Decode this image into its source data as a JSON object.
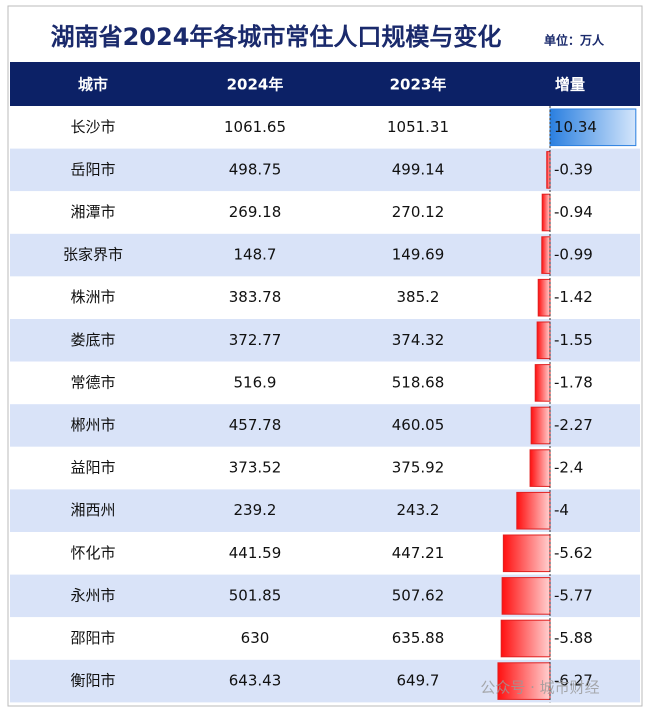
{
  "header": {
    "title": "湖南省2024年各城市常住人口规模与变化",
    "unit": "单位：万人"
  },
  "table": {
    "columns": [
      "城市",
      "2024年",
      "2023年",
      "增量"
    ],
    "rows": [
      [
        "长沙市",
        1061.65,
        1051.31,
        10.34
      ],
      [
        "岳阳市",
        498.75,
        499.14,
        -0.39
      ],
      [
        "湘潭市",
        269.18,
        270.12,
        -0.94
      ],
      [
        "张家界市",
        148.7,
        149.69,
        -0.99
      ],
      [
        "株洲市",
        383.78,
        385.2,
        -1.42
      ],
      [
        "娄底市",
        372.77,
        374.32,
        -1.55
      ],
      [
        "常德市",
        516.9,
        518.68,
        -1.78
      ],
      [
        "郴州市",
        457.78,
        460.05,
        -2.27
      ],
      [
        "益阳市",
        373.52,
        375.92,
        -2.4
      ],
      [
        "湘西州",
        239.2,
        243.2,
        -4
      ],
      [
        "怀化市",
        441.59,
        447.21,
        -5.62
      ],
      [
        "永州市",
        501.85,
        507.62,
        -5.77
      ],
      [
        "邵阳市",
        630,
        635.88,
        -5.88
      ],
      [
        "衡阳市",
        643.43,
        649.7,
        -6.27
      ]
    ]
  },
  "watermark": "公众号 · 城市财经"
}
